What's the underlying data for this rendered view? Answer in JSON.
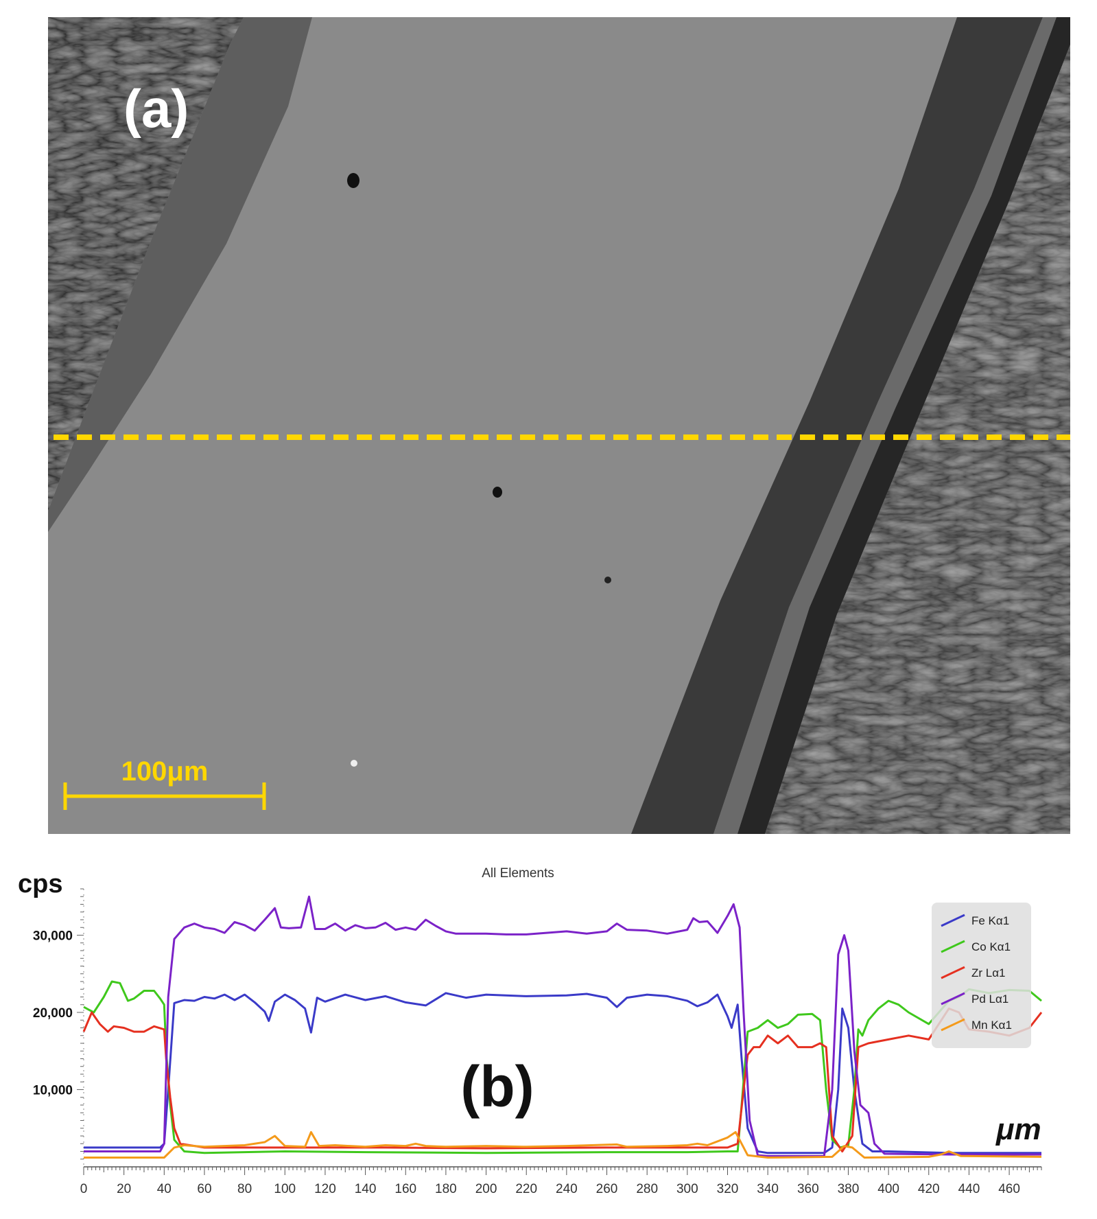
{
  "panel_a": {
    "label": "(a)",
    "scale_bar_label": "100μm",
    "line_color": "#ffd700"
  },
  "panel_b": {
    "label": "(b)",
    "y_unit": "cps",
    "x_unit": "μm"
  },
  "chart_data": {
    "type": "line",
    "title": "All Elements",
    "xlabel": "μm",
    "ylabel": "cps",
    "xlim": [
      0,
      476
    ],
    "ylim": [
      0,
      36000
    ],
    "x_ticks": [
      0,
      20,
      40,
      60,
      80,
      100,
      120,
      140,
      160,
      180,
      200,
      220,
      240,
      260,
      280,
      300,
      320,
      340,
      360,
      380,
      400,
      420,
      440,
      460
    ],
    "y_ticks": [
      10000,
      20000,
      30000
    ],
    "y_tick_labels": [
      "10,000",
      "20,000",
      "30,000"
    ],
    "legend_position": "top-right",
    "series": [
      {
        "name": "Fe Kα1",
        "color": "#3a3ac8",
        "points": [
          [
            0,
            2500
          ],
          [
            20,
            2500
          ],
          [
            38,
            2500
          ],
          [
            40,
            3000
          ],
          [
            42,
            10000
          ],
          [
            45,
            21200
          ],
          [
            50,
            21600
          ],
          [
            55,
            21500
          ],
          [
            60,
            22000
          ],
          [
            65,
            21800
          ],
          [
            70,
            22300
          ],
          [
            75,
            21600
          ],
          [
            80,
            22300
          ],
          [
            85,
            21300
          ],
          [
            90,
            20100
          ],
          [
            92,
            18900
          ],
          [
            95,
            21400
          ],
          [
            100,
            22300
          ],
          [
            105,
            21600
          ],
          [
            110,
            20500
          ],
          [
            113,
            17400
          ],
          [
            116,
            21900
          ],
          [
            120,
            21400
          ],
          [
            130,
            22300
          ],
          [
            140,
            21600
          ],
          [
            150,
            22100
          ],
          [
            160,
            21300
          ],
          [
            170,
            20900
          ],
          [
            180,
            22500
          ],
          [
            190,
            21900
          ],
          [
            200,
            22300
          ],
          [
            220,
            22100
          ],
          [
            240,
            22200
          ],
          [
            250,
            22400
          ],
          [
            260,
            21900
          ],
          [
            265,
            20700
          ],
          [
            270,
            21900
          ],
          [
            280,
            22300
          ],
          [
            290,
            22100
          ],
          [
            300,
            21500
          ],
          [
            305,
            20800
          ],
          [
            310,
            21300
          ],
          [
            315,
            22300
          ],
          [
            320,
            19500
          ],
          [
            322,
            18000
          ],
          [
            325,
            21000
          ],
          [
            327,
            14000
          ],
          [
            330,
            5000
          ],
          [
            335,
            2000
          ],
          [
            340,
            1800
          ],
          [
            360,
            1800
          ],
          [
            368,
            1800
          ],
          [
            372,
            2500
          ],
          [
            375,
            10000
          ],
          [
            377,
            20500
          ],
          [
            380,
            18000
          ],
          [
            383,
            10000
          ],
          [
            387,
            3000
          ],
          [
            392,
            2000
          ],
          [
            400,
            2000
          ],
          [
            430,
            1800
          ],
          [
            476,
            1800
          ]
        ]
      },
      {
        "name": "Co Kα1",
        "color": "#3fc81c",
        "points": [
          [
            0,
            20700
          ],
          [
            5,
            20000
          ],
          [
            10,
            22000
          ],
          [
            14,
            24000
          ],
          [
            18,
            23800
          ],
          [
            22,
            21500
          ],
          [
            25,
            21800
          ],
          [
            30,
            22800
          ],
          [
            35,
            22800
          ],
          [
            38,
            21800
          ],
          [
            40,
            21000
          ],
          [
            41,
            15000
          ],
          [
            43,
            8000
          ],
          [
            45,
            3500
          ],
          [
            50,
            2000
          ],
          [
            60,
            1800
          ],
          [
            100,
            2000
          ],
          [
            140,
            1900
          ],
          [
            200,
            1800
          ],
          [
            260,
            1900
          ],
          [
            300,
            1900
          ],
          [
            320,
            2000
          ],
          [
            325,
            2000
          ],
          [
            327,
            8000
          ],
          [
            330,
            17500
          ],
          [
            335,
            18000
          ],
          [
            340,
            19000
          ],
          [
            345,
            18000
          ],
          [
            350,
            18500
          ],
          [
            355,
            19700
          ],
          [
            362,
            19800
          ],
          [
            366,
            19000
          ],
          [
            369,
            10000
          ],
          [
            372,
            3500
          ],
          [
            376,
            2500
          ],
          [
            380,
            2800
          ],
          [
            383,
            10000
          ],
          [
            385,
            17800
          ],
          [
            387,
            17000
          ],
          [
            390,
            19000
          ],
          [
            395,
            20500
          ],
          [
            400,
            21500
          ],
          [
            405,
            21000
          ],
          [
            410,
            20000
          ],
          [
            420,
            18500
          ],
          [
            430,
            21500
          ],
          [
            435,
            22000
          ],
          [
            440,
            23000
          ],
          [
            450,
            22500
          ],
          [
            460,
            22900
          ],
          [
            470,
            22800
          ],
          [
            476,
            21500
          ]
        ]
      },
      {
        "name": "Zr Lα1",
        "color": "#e53020",
        "points": [
          [
            0,
            17500
          ],
          [
            4,
            20000
          ],
          [
            8,
            18500
          ],
          [
            12,
            17500
          ],
          [
            15,
            18200
          ],
          [
            20,
            18000
          ],
          [
            25,
            17500
          ],
          [
            30,
            17500
          ],
          [
            35,
            18200
          ],
          [
            40,
            17800
          ],
          [
            41,
            14000
          ],
          [
            43,
            9000
          ],
          [
            45,
            5000
          ],
          [
            48,
            3000
          ],
          [
            60,
            2500
          ],
          [
            100,
            2500
          ],
          [
            150,
            2500
          ],
          [
            200,
            2400
          ],
          [
            260,
            2500
          ],
          [
            320,
            2500
          ],
          [
            325,
            3000
          ],
          [
            328,
            10000
          ],
          [
            330,
            14500
          ],
          [
            333,
            15500
          ],
          [
            336,
            15500
          ],
          [
            340,
            17000
          ],
          [
            345,
            16000
          ],
          [
            350,
            17000
          ],
          [
            355,
            15500
          ],
          [
            362,
            15500
          ],
          [
            366,
            16000
          ],
          [
            369,
            15500
          ],
          [
            372,
            4000
          ],
          [
            377,
            2000
          ],
          [
            382,
            4000
          ],
          [
            385,
            15500
          ],
          [
            390,
            16000
          ],
          [
            400,
            16500
          ],
          [
            410,
            17000
          ],
          [
            420,
            16500
          ],
          [
            430,
            20500
          ],
          [
            435,
            20000
          ],
          [
            440,
            17800
          ],
          [
            450,
            17500
          ],
          [
            460,
            17000
          ],
          [
            470,
            18000
          ],
          [
            476,
            20000
          ]
        ]
      },
      {
        "name": "Pd Lα1",
        "color": "#7b22c8",
        "points": [
          [
            0,
            2000
          ],
          [
            20,
            2000
          ],
          [
            38,
            2000
          ],
          [
            40,
            3000
          ],
          [
            42,
            22000
          ],
          [
            45,
            29500
          ],
          [
            50,
            31000
          ],
          [
            55,
            31500
          ],
          [
            60,
            31000
          ],
          [
            65,
            30800
          ],
          [
            70,
            30300
          ],
          [
            75,
            31700
          ],
          [
            80,
            31300
          ],
          [
            85,
            30600
          ],
          [
            90,
            32000
          ],
          [
            95,
            33500
          ],
          [
            98,
            31000
          ],
          [
            102,
            30900
          ],
          [
            108,
            31000
          ],
          [
            112,
            35000
          ],
          [
            115,
            30800
          ],
          [
            120,
            30800
          ],
          [
            125,
            31500
          ],
          [
            130,
            30600
          ],
          [
            135,
            31300
          ],
          [
            140,
            30900
          ],
          [
            145,
            31000
          ],
          [
            150,
            31600
          ],
          [
            155,
            30700
          ],
          [
            160,
            31000
          ],
          [
            165,
            30700
          ],
          [
            170,
            32000
          ],
          [
            175,
            31200
          ],
          [
            180,
            30500
          ],
          [
            185,
            30200
          ],
          [
            190,
            30200
          ],
          [
            200,
            30200
          ],
          [
            210,
            30100
          ],
          [
            220,
            30100
          ],
          [
            230,
            30300
          ],
          [
            240,
            30500
          ],
          [
            250,
            30200
          ],
          [
            260,
            30500
          ],
          [
            265,
            31500
          ],
          [
            270,
            30700
          ],
          [
            280,
            30600
          ],
          [
            290,
            30200
          ],
          [
            300,
            30700
          ],
          [
            303,
            32200
          ],
          [
            306,
            31700
          ],
          [
            310,
            31800
          ],
          [
            315,
            30300
          ],
          [
            320,
            32500
          ],
          [
            323,
            34000
          ],
          [
            326,
            31000
          ],
          [
            328,
            20000
          ],
          [
            331,
            6000
          ],
          [
            335,
            1500
          ],
          [
            340,
            1400
          ],
          [
            368,
            1400
          ],
          [
            372,
            10000
          ],
          [
            375,
            27500
          ],
          [
            378,
            30000
          ],
          [
            380,
            28000
          ],
          [
            383,
            15000
          ],
          [
            386,
            8000
          ],
          [
            390,
            7000
          ],
          [
            393,
            3000
          ],
          [
            398,
            1700
          ],
          [
            430,
            1600
          ],
          [
            476,
            1600
          ]
        ]
      },
      {
        "name": "Mn Kα1",
        "color": "#f49a1a",
        "points": [
          [
            0,
            1200
          ],
          [
            40,
            1200
          ],
          [
            45,
            2500
          ],
          [
            50,
            2800
          ],
          [
            60,
            2600
          ],
          [
            70,
            2700
          ],
          [
            80,
            2800
          ],
          [
            90,
            3200
          ],
          [
            95,
            4000
          ],
          [
            100,
            2700
          ],
          [
            110,
            2600
          ],
          [
            113,
            4500
          ],
          [
            117,
            2700
          ],
          [
            125,
            2800
          ],
          [
            140,
            2600
          ],
          [
            150,
            2800
          ],
          [
            160,
            2700
          ],
          [
            165,
            3000
          ],
          [
            170,
            2700
          ],
          [
            180,
            2600
          ],
          [
            200,
            2700
          ],
          [
            220,
            2600
          ],
          [
            240,
            2700
          ],
          [
            265,
            2900
          ],
          [
            270,
            2600
          ],
          [
            290,
            2700
          ],
          [
            300,
            2800
          ],
          [
            305,
            3000
          ],
          [
            310,
            2800
          ],
          [
            320,
            3800
          ],
          [
            324,
            4500
          ],
          [
            327,
            3000
          ],
          [
            330,
            1500
          ],
          [
            340,
            1200
          ],
          [
            372,
            1300
          ],
          [
            378,
            2700
          ],
          [
            382,
            2500
          ],
          [
            388,
            1200
          ],
          [
            420,
            1300
          ],
          [
            426,
            1600
          ],
          [
            430,
            2000
          ],
          [
            436,
            1400
          ],
          [
            476,
            1300
          ]
        ]
      }
    ]
  }
}
